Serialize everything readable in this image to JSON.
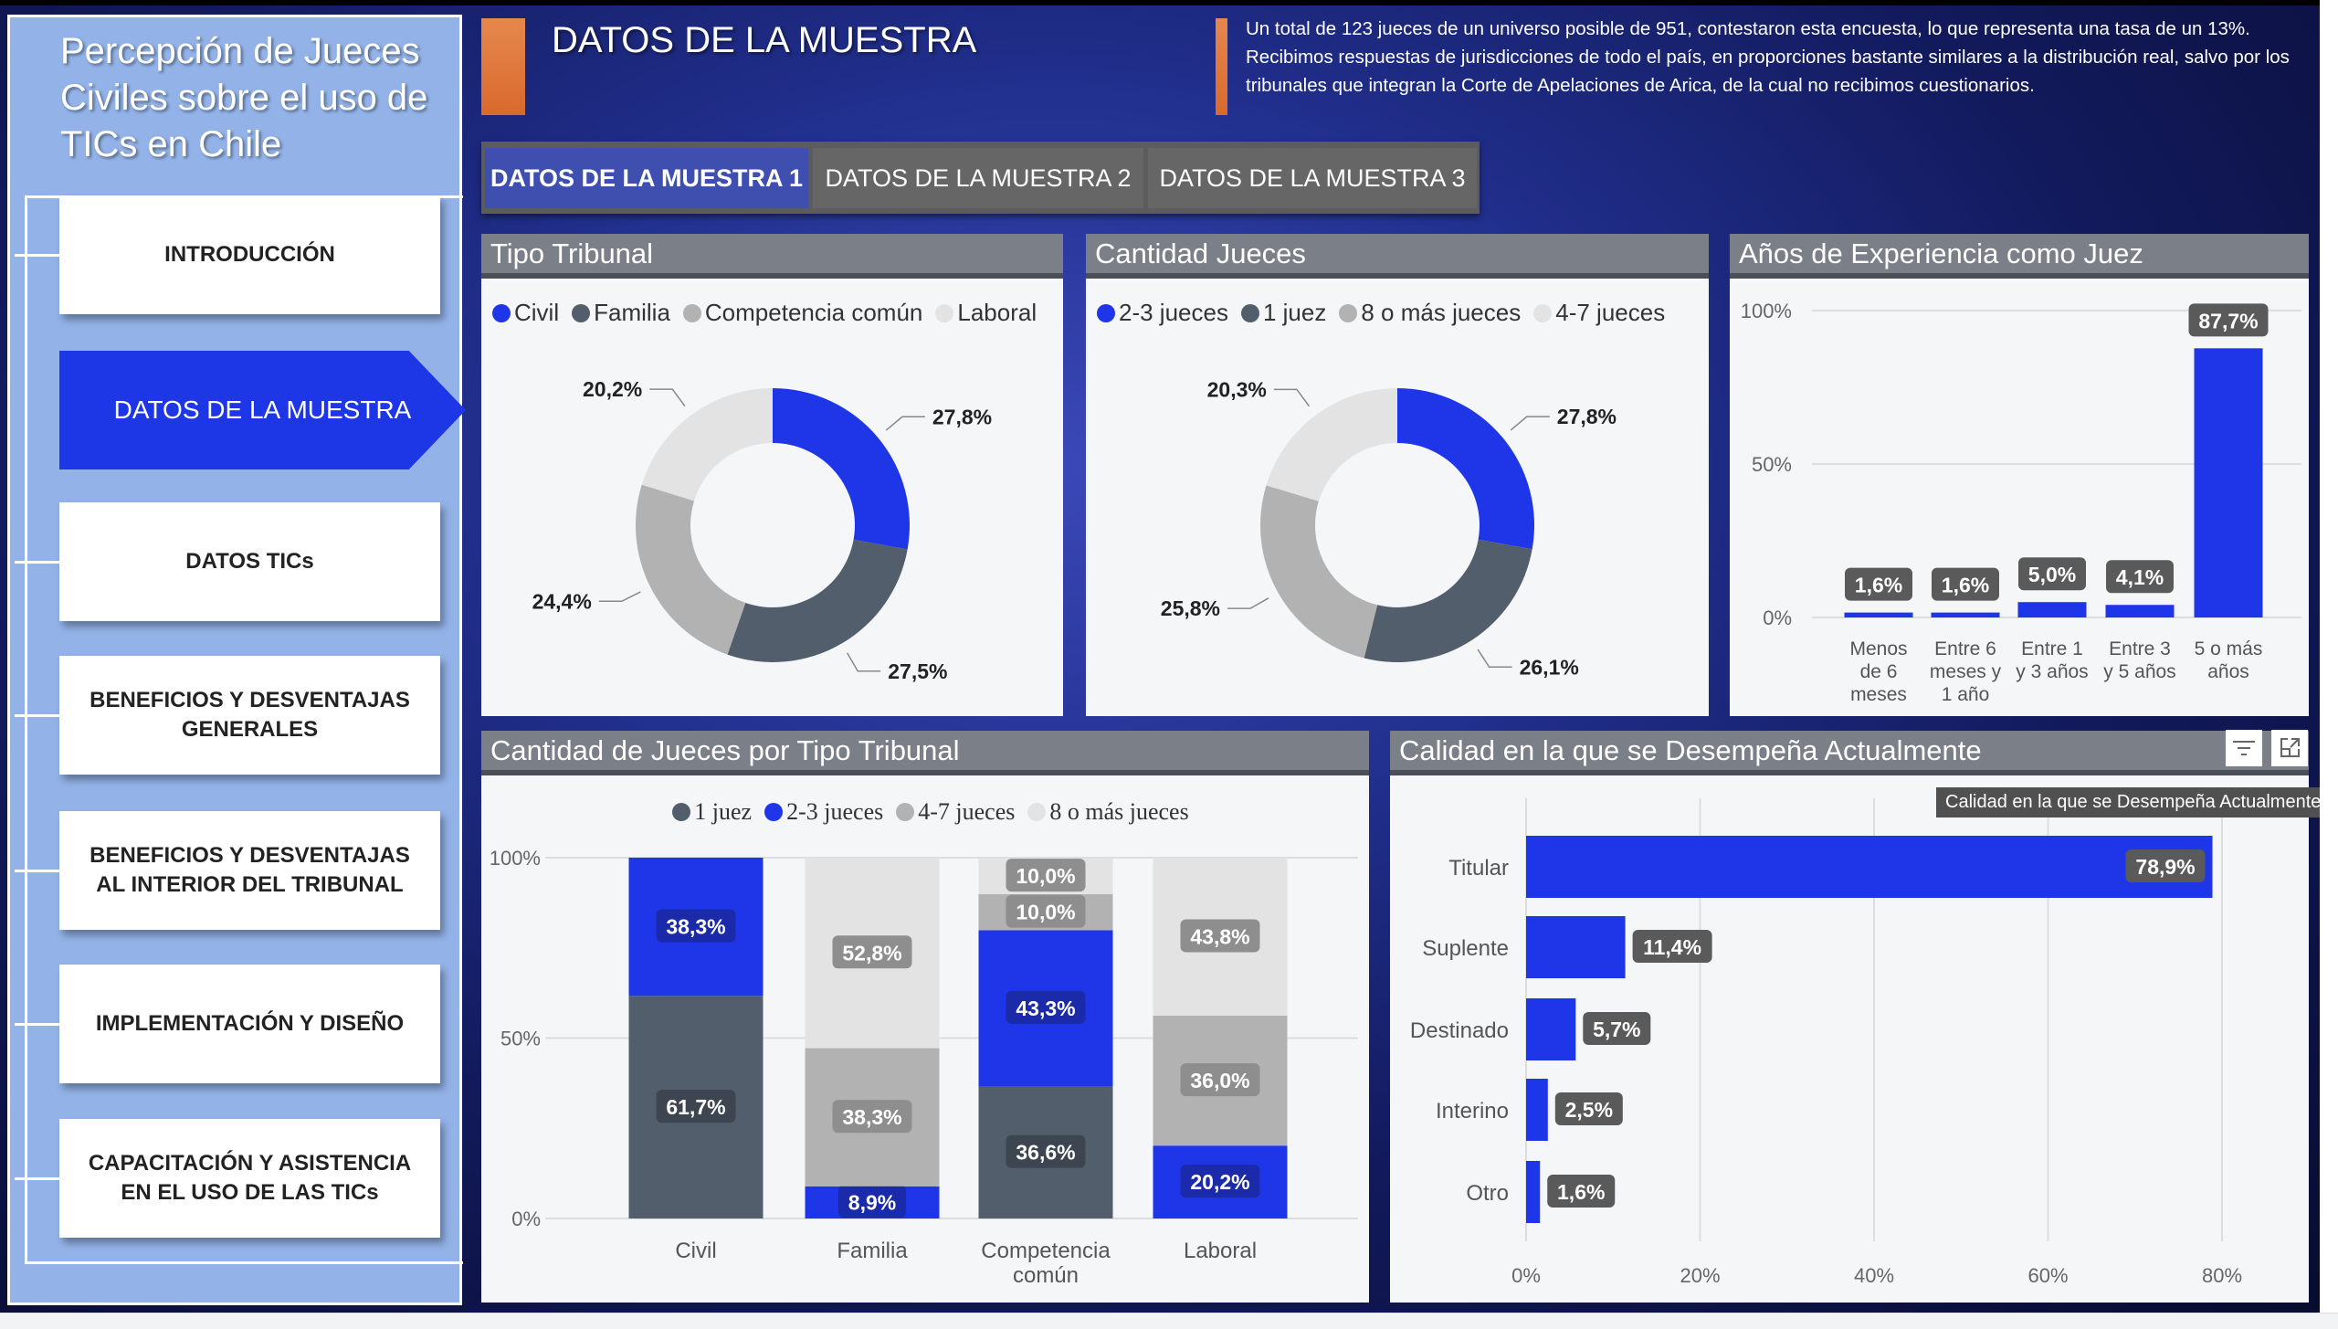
{
  "sidebar": {
    "title": "Percepción de Jueces Civiles sobre el uso de TICs en Chile",
    "items": [
      {
        "label": "INTRODUCCIÓN",
        "active": false
      },
      {
        "label": "DATOS DE LA MUESTRA",
        "active": true
      },
      {
        "label": "DATOS TICs",
        "active": false
      },
      {
        "label": "BENEFICIOS Y DESVENTAJAS GENERALES",
        "active": false
      },
      {
        "label": "BENEFICIOS Y DESVENTAJAS AL INTERIOR DEL TRIBUNAL",
        "active": false
      },
      {
        "label": "IMPLEMENTACIÓN Y DISEÑO",
        "active": false
      },
      {
        "label": "CAPACITACIÓN Y ASISTENCIA EN EL USO DE LAS TICs",
        "active": false
      }
    ]
  },
  "header": {
    "title": "DATOS DE LA MUESTRA",
    "description": "Un total de 123 jueces de un universo posible de 951, contestaron esta encuesta, lo que representa una tasa de un 13%. Recibimos respuestas de jurisdicciones de todo el país, en proporciones bastante similares a la distribución real, salvo por los tribunales que integran la Corte de Apelaciones de Arica, de la cual no recibimos cuestionarios."
  },
  "tabs": [
    {
      "label": "DATOS DE LA MUESTRA 1",
      "active": true
    },
    {
      "label": "DATOS DE LA MUESTRA 2",
      "active": false
    },
    {
      "label": "DATOS DE LA MUESTRA 3",
      "active": false
    }
  ],
  "colors": {
    "blue": "#1f36e8",
    "dark": "#525e6b",
    "gray": "#b2b2b2",
    "light": "#e3e3e3",
    "accent": "#e07838"
  },
  "tooltip": "Calidad en la que se Desempeña Actualmente",
  "icons": {
    "filter": "filter-icon",
    "expand": "expand-icon"
  },
  "chart_data": [
    {
      "type": "pie",
      "title": "Tipo Tribunal",
      "donut": true,
      "labels": [
        "Civil",
        "Familia",
        "Competencia común",
        "Laboral"
      ],
      "values": [
        27.8,
        27.5,
        24.4,
        20.2
      ],
      "value_labels": [
        "27,8%",
        "27,5%",
        "24,4%",
        "20,2%"
      ],
      "colors": [
        "#1f36e8",
        "#525e6b",
        "#b2b2b2",
        "#e3e3e3"
      ],
      "legend": "top"
    },
    {
      "type": "pie",
      "title": "Cantidad Jueces",
      "donut": true,
      "labels": [
        "2-3 jueces",
        "1 juez",
        "8 o más jueces",
        "4-7 jueces"
      ],
      "values": [
        27.8,
        26.1,
        25.8,
        20.3
      ],
      "value_labels": [
        "27,8%",
        "26,1%",
        "25,8%",
        "20,3%"
      ],
      "colors": [
        "#1f36e8",
        "#525e6b",
        "#b2b2b2",
        "#e3e3e3"
      ],
      "legend": "top"
    },
    {
      "type": "bar",
      "title": "Años de Experiencia como Juez",
      "categories": [
        "Menos de 6 meses",
        "Entre 6 meses y 1 año",
        "Entre 1 y 3 años",
        "Entre 3 y 5 años",
        "5 o más años"
      ],
      "category_lines": [
        [
          "Menos",
          "de 6",
          "meses"
        ],
        [
          "Entre 6",
          "meses y",
          "1 año"
        ],
        [
          "Entre 1",
          "y 3 años"
        ],
        [
          "Entre 3",
          "y 5 años"
        ],
        [
          "5 o más",
          "años"
        ]
      ],
      "values": [
        1.6,
        1.6,
        5.0,
        4.1,
        87.7
      ],
      "value_labels": [
        "1,6%",
        "1,6%",
        "5,0%",
        "4,1%",
        "87,7%"
      ],
      "ylim": [
        0,
        100
      ],
      "yticks": [
        "0%",
        "50%",
        "100%"
      ],
      "grid": true
    },
    {
      "type": "bar",
      "stacked": true,
      "title": "Cantidad de Jueces por Tipo Tribunal",
      "categories": [
        "Civil",
        "Familia",
        "Competencia común",
        "Laboral"
      ],
      "category_lines": [
        [
          "Civil"
        ],
        [
          "Familia"
        ],
        [
          "Competencia",
          "común"
        ],
        [
          "Laboral"
        ]
      ],
      "series": [
        {
          "name": "1 juez",
          "color": "#525e6b",
          "values": [
            61.7,
            0,
            36.6,
            0
          ],
          "labels": [
            "61,7%",
            "",
            "36,6%",
            ""
          ]
        },
        {
          "name": "2-3 jueces",
          "color": "#1f36e8",
          "values": [
            38.3,
            8.9,
            43.3,
            20.2
          ],
          "labels": [
            "38,3%",
            "8,9%",
            "43,3%",
            "20,2%"
          ]
        },
        {
          "name": "4-7 jueces",
          "color": "#b2b2b2",
          "values": [
            0,
            38.3,
            10.0,
            36.0
          ],
          "labels": [
            "",
            "38,3%",
            "10,0%",
            "36,0%"
          ]
        },
        {
          "name": "8 o más jueces",
          "color": "#e3e3e3",
          "values": [
            0,
            52.8,
            10.0,
            43.8
          ],
          "labels": [
            "",
            "52,8%",
            "10,0%",
            "43,8%"
          ]
        }
      ],
      "ylim": [
        0,
        100
      ],
      "yticks": [
        "0%",
        "50%",
        "100%"
      ],
      "legend": "top",
      "grid": true
    },
    {
      "type": "bar",
      "orientation": "horizontal",
      "title": "Calidad en la que se Desempeña Actualmente",
      "categories": [
        "Titular",
        "Suplente",
        "Destinado",
        "Interino",
        "Otro"
      ],
      "values": [
        78.9,
        11.4,
        5.7,
        2.5,
        1.6
      ],
      "value_labels": [
        "78,9%",
        "11,4%",
        "5,7%",
        "2,5%",
        "1,6%"
      ],
      "xlim": [
        0,
        80
      ],
      "xticks": [
        "0%",
        "20%",
        "40%",
        "60%",
        "80%"
      ],
      "grid": true
    }
  ]
}
